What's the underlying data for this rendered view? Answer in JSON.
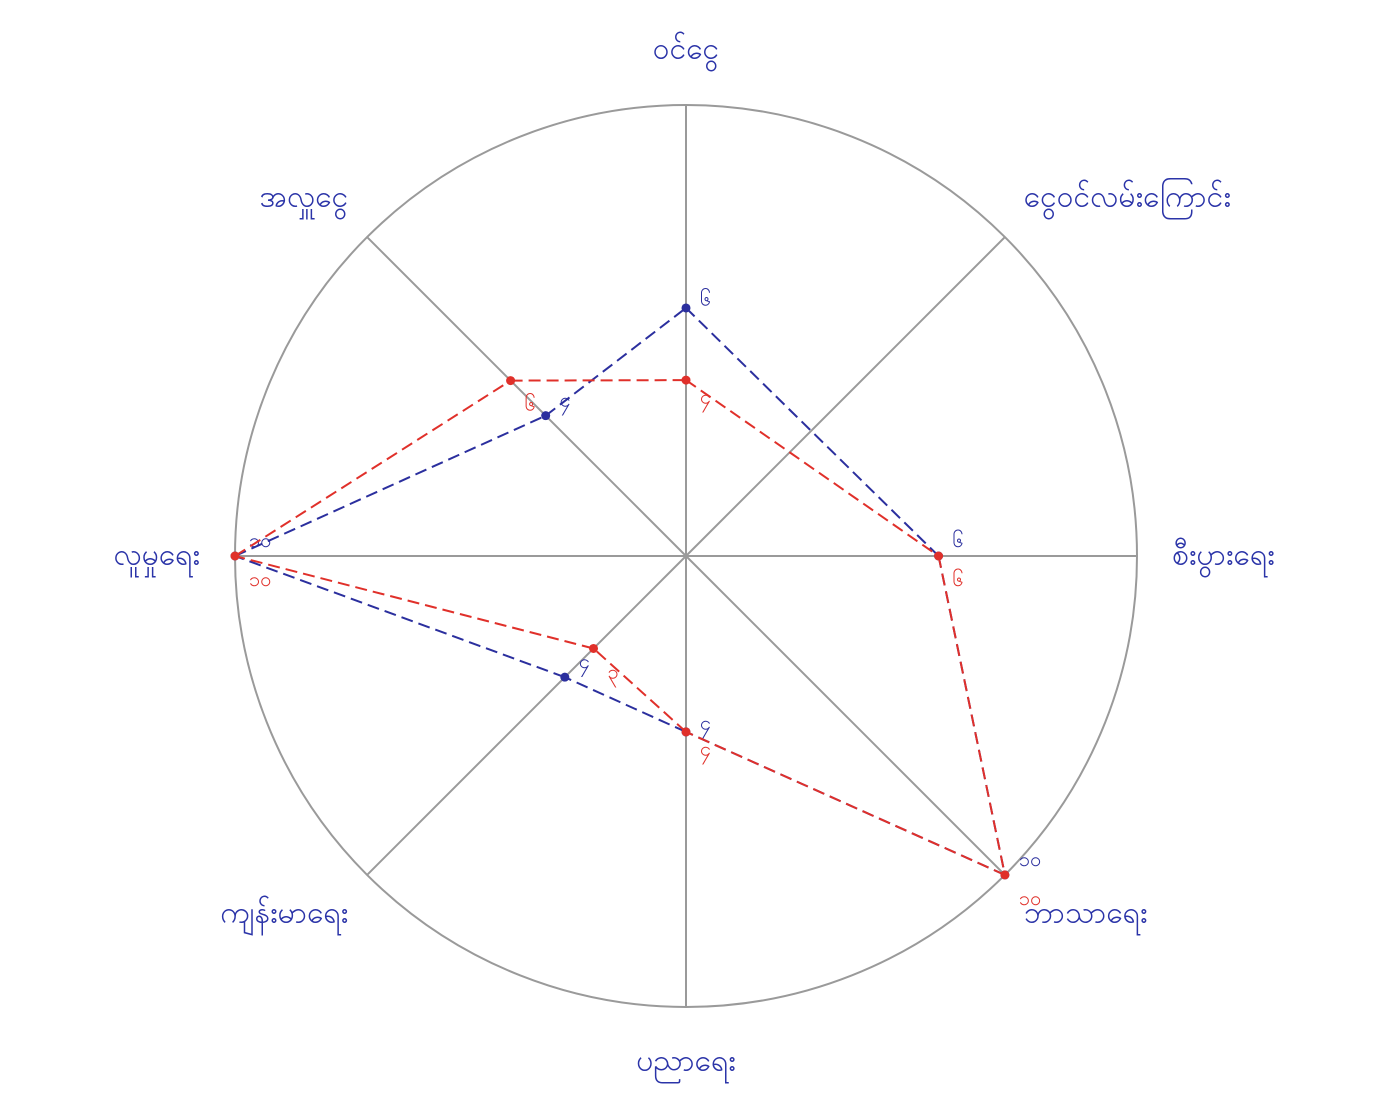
{
  "chart_data": {
    "type": "radar",
    "categories": [
      "ဝင်ငွေ",
      "ငွေဝင်လမ်းကြောင်း",
      "စီးပွားရေး",
      "ဘာသာရေး",
      "ပညာရေး",
      "ကျန်းမာရေး",
      "လူမှုရေး",
      "အလှူငွေ"
    ],
    "rlim": [
      0,
      10
    ],
    "series": [
      {
        "color": "#2b2f9e",
        "values": [
          5.5,
          null,
          5.6,
          10,
          3.9,
          3.8,
          10,
          4.4
        ],
        "value_labels": [
          "၆",
          null,
          "၆",
          "၁၀",
          "၄",
          "၄",
          "၁၀",
          "၄"
        ]
      },
      {
        "color": "#e0302a",
        "values": [
          3.9,
          null,
          5.6,
          10,
          3.9,
          2.9,
          10,
          5.5
        ],
        "value_labels": [
          "၄",
          null,
          "၆",
          "၁၀",
          "၄",
          "၃",
          "၁၀",
          "၆"
        ]
      }
    ]
  }
}
